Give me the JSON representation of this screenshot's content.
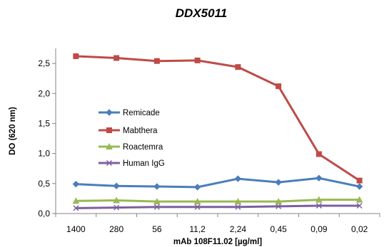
{
  "chart_data": {
    "type": "line",
    "title": "DDX5011",
    "xlabel": "mAb 108F11.02 [µg/ml]",
    "ylabel": "DO (620 nm)",
    "categories": [
      "1400",
      "280",
      "56",
      "11,2",
      "2,24",
      "0,45",
      "0,09",
      "0,02"
    ],
    "ylim": [
      0,
      2.75
    ],
    "yticks": [
      0,
      0.5,
      1,
      1.5,
      2,
      2.5
    ],
    "ytick_labels": [
      "0,0",
      "0,5",
      "1,0",
      "1,5",
      "2,0",
      "2,5"
    ],
    "grid": false,
    "legend_position": "center-left",
    "series": [
      {
        "name": "Remicade",
        "color": "#4a7ebb",
        "marker": "diamond",
        "values": [
          0.49,
          0.46,
          0.45,
          0.44,
          0.58,
          0.52,
          0.59,
          0.45
        ]
      },
      {
        "name": "Mabthera",
        "color": "#be4b48",
        "marker": "square",
        "values": [
          2.62,
          2.59,
          2.54,
          2.55,
          2.44,
          2.12,
          0.99,
          0.55
        ]
      },
      {
        "name": "Roactemra",
        "color": "#98b954",
        "marker": "triangle",
        "values": [
          0.21,
          0.22,
          0.2,
          0.2,
          0.2,
          0.2,
          0.23,
          0.23
        ]
      },
      {
        "name": "Human IgG",
        "color": "#7d5fa0",
        "marker": "x",
        "values": [
          0.09,
          0.1,
          0.11,
          0.11,
          0.11,
          0.12,
          0.13,
          0.13
        ]
      }
    ]
  }
}
